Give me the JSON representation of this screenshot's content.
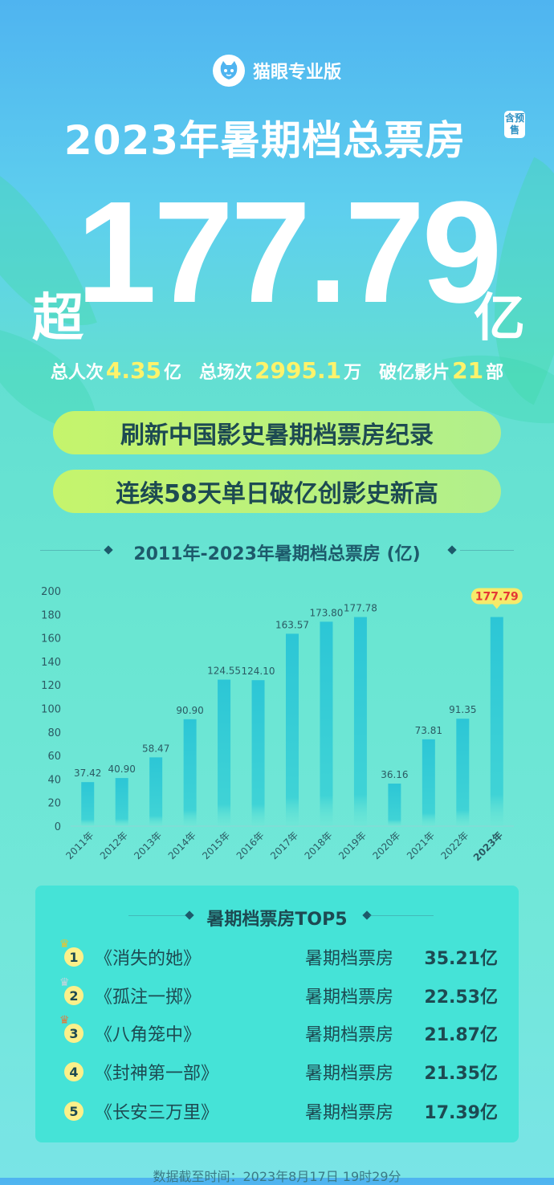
{
  "brand": "猫眼专业版",
  "title": "2023年暑期档总票房",
  "presale_badge": "含预售",
  "headline": {
    "prefix": "超",
    "value": "177.79",
    "unit": "亿"
  },
  "stats": [
    {
      "label": "总人次",
      "value": "4.35",
      "unit": "亿"
    },
    {
      "label": "总场次",
      "value": "2995.1",
      "unit": "万"
    },
    {
      "label": "破亿影片",
      "value": "21",
      "unit": "部"
    }
  ],
  "pills": [
    "刷新中国影史暑期档票房纪录",
    "连续58天单日破亿创影史新高"
  ],
  "chart_data": {
    "type": "bar",
    "title": "2011年-2023年暑期档总票房 (亿)",
    "categories": [
      "2011年",
      "2012年",
      "2013年",
      "2014年",
      "2015年",
      "2016年",
      "2017年",
      "2018年",
      "2019年",
      "2020年",
      "2021年",
      "2022年",
      "2023年"
    ],
    "values": [
      37.42,
      40.9,
      58.47,
      90.9,
      124.55,
      124.1,
      163.57,
      173.8,
      177.78,
      36.16,
      73.81,
      91.35,
      177.79
    ],
    "value_labels": [
      "37.42",
      "40.90",
      "58.47",
      "90.90",
      "124.55",
      "124.10",
      "163.57",
      "173.80",
      "177.78",
      "36.16",
      "73.81",
      "91.35",
      "177.79"
    ],
    "ylim": [
      0,
      200
    ],
    "yticks": [
      "0",
      "20",
      "40",
      "60",
      "80",
      "100",
      "120",
      "140",
      "160",
      "180",
      "200"
    ],
    "highlight_index": 12,
    "colors": {
      "bar": "#2fc9d6",
      "highlight_label": "#e53935",
      "badge_bg": "#f7ea6a"
    }
  },
  "top5": {
    "title": "暑期档票房TOP5",
    "rows": [
      {
        "rank": "1",
        "movie": "《消失的她》",
        "label": "暑期档票房",
        "value": "35.21亿"
      },
      {
        "rank": "2",
        "movie": "《孤注一掷》",
        "label": "暑期档票房",
        "value": "22.53亿"
      },
      {
        "rank": "3",
        "movie": "《八角笼中》",
        "label": "暑期档票房",
        "value": "21.87亿"
      },
      {
        "rank": "4",
        "movie": "《封神第一部》",
        "label": "暑期档票房",
        "value": "21.35亿"
      },
      {
        "rank": "5",
        "movie": "《长安三万里》",
        "label": "暑期档票房",
        "value": "17.39亿"
      }
    ]
  },
  "footer": "数据截至时间：2023年8月17日 19时29分"
}
